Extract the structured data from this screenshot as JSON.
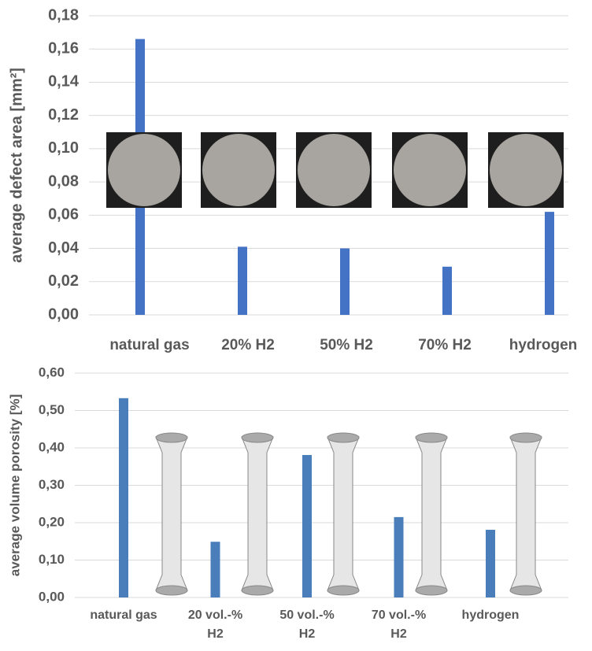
{
  "chart_data": [
    {
      "type": "bar",
      "y_label": "average defect area [mm²]",
      "categories": [
        "natural gas",
        "20% H2",
        "50% H2",
        "70% H2",
        "hydrogen"
      ],
      "values": [
        0.166,
        0.041,
        0.04,
        0.029,
        0.062
      ],
      "color": "#4472c4",
      "ylim": [
        0,
        0.18
      ],
      "yticks": [
        {
          "value": 0,
          "label": "0,00"
        },
        {
          "value": 0.02,
          "label": "0,02"
        },
        {
          "value": 0.04,
          "label": "0,04"
        },
        {
          "value": 0.06,
          "label": "0,06"
        },
        {
          "value": 0.08,
          "label": "0,08"
        },
        {
          "value": 0.1,
          "label": "0,10"
        },
        {
          "value": 0.12,
          "label": "0,12"
        },
        {
          "value": 0.14,
          "label": "0,14"
        },
        {
          "value": 0.16,
          "label": "0,16"
        },
        {
          "value": 0.18,
          "label": "0,18"
        }
      ],
      "grid": true
    },
    {
      "type": "bar",
      "y_label": "average volume porosity [%]",
      "categories": [
        "natural gas",
        "20 vol.-%\nH2",
        "50 vol.-%\nH2",
        "70 vol.-%\nH2",
        "hydrogen"
      ],
      "values": [
        0.533,
        0.149,
        0.381,
        0.215,
        0.181
      ],
      "color": "#4a7ebb",
      "ylim": [
        0,
        0.6
      ],
      "yticks": [
        {
          "value": 0,
          "label": "0,00"
        },
        {
          "value": 0.1,
          "label": "0,10"
        },
        {
          "value": 0.2,
          "label": "0,20"
        },
        {
          "value": 0.3,
          "label": "0,30"
        },
        {
          "value": 0.4,
          "label": "0,40"
        },
        {
          "value": 0.5,
          "label": "0,50"
        },
        {
          "value": 0.6,
          "label": "0,60"
        }
      ],
      "grid": true
    }
  ]
}
